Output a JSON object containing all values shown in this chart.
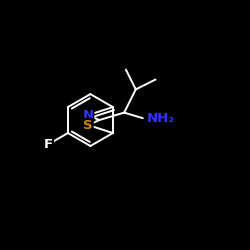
{
  "background_color": "#000000",
  "bond_color": "#ffffff",
  "N_color": "#3333ff",
  "S_color": "#cc8800",
  "F_color": "#ffffff",
  "NH2_color": "#3333ff",
  "label_N": "N",
  "label_S": "S",
  "label_F": "F",
  "label_NH2": "NH₂",
  "figsize": [
    2.5,
    2.5
  ],
  "dpi": 100
}
